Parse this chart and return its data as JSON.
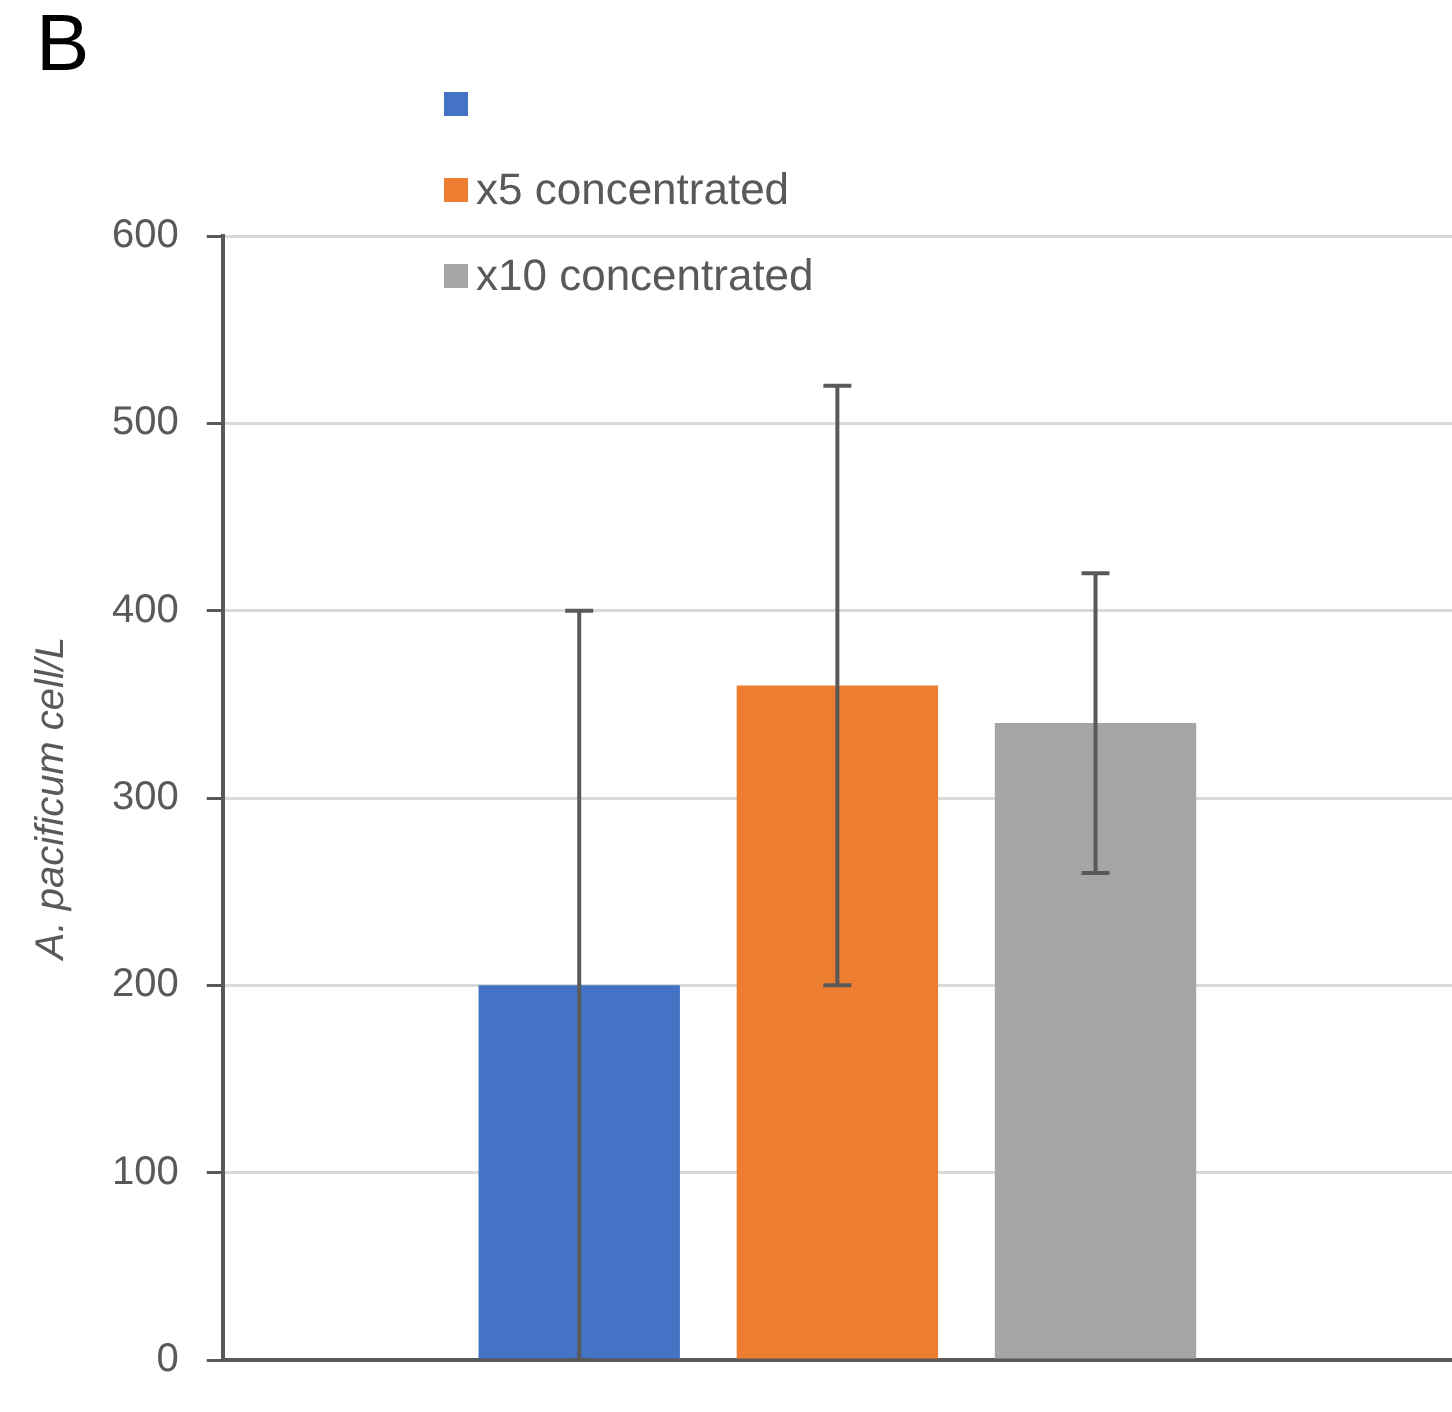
{
  "chart_data": {
    "type": "bar",
    "title": "B",
    "ylabel": "A. pacificum cell/L",
    "categories": [
      null
    ],
    "series": [
      {
        "color": "#4472c4",
        "values": [
          200
        ],
        "errors": [
          200
        ]
      },
      {
        "name": "x5 concentrated",
        "color": "#ed7d31",
        "values": [
          360
        ],
        "errors": [
          160
        ]
      },
      {
        "name": "x10 concentrated",
        "color": "#a5a5a5",
        "values": [
          340
        ],
        "errors": [
          80
        ]
      }
    ],
    "ylim": [
      0,
      600
    ],
    "yticks": [
      0,
      100,
      200,
      300,
      400,
      500,
      600
    ],
    "grid": "y",
    "legend": "top left",
    "tick_labels": "y"
  }
}
